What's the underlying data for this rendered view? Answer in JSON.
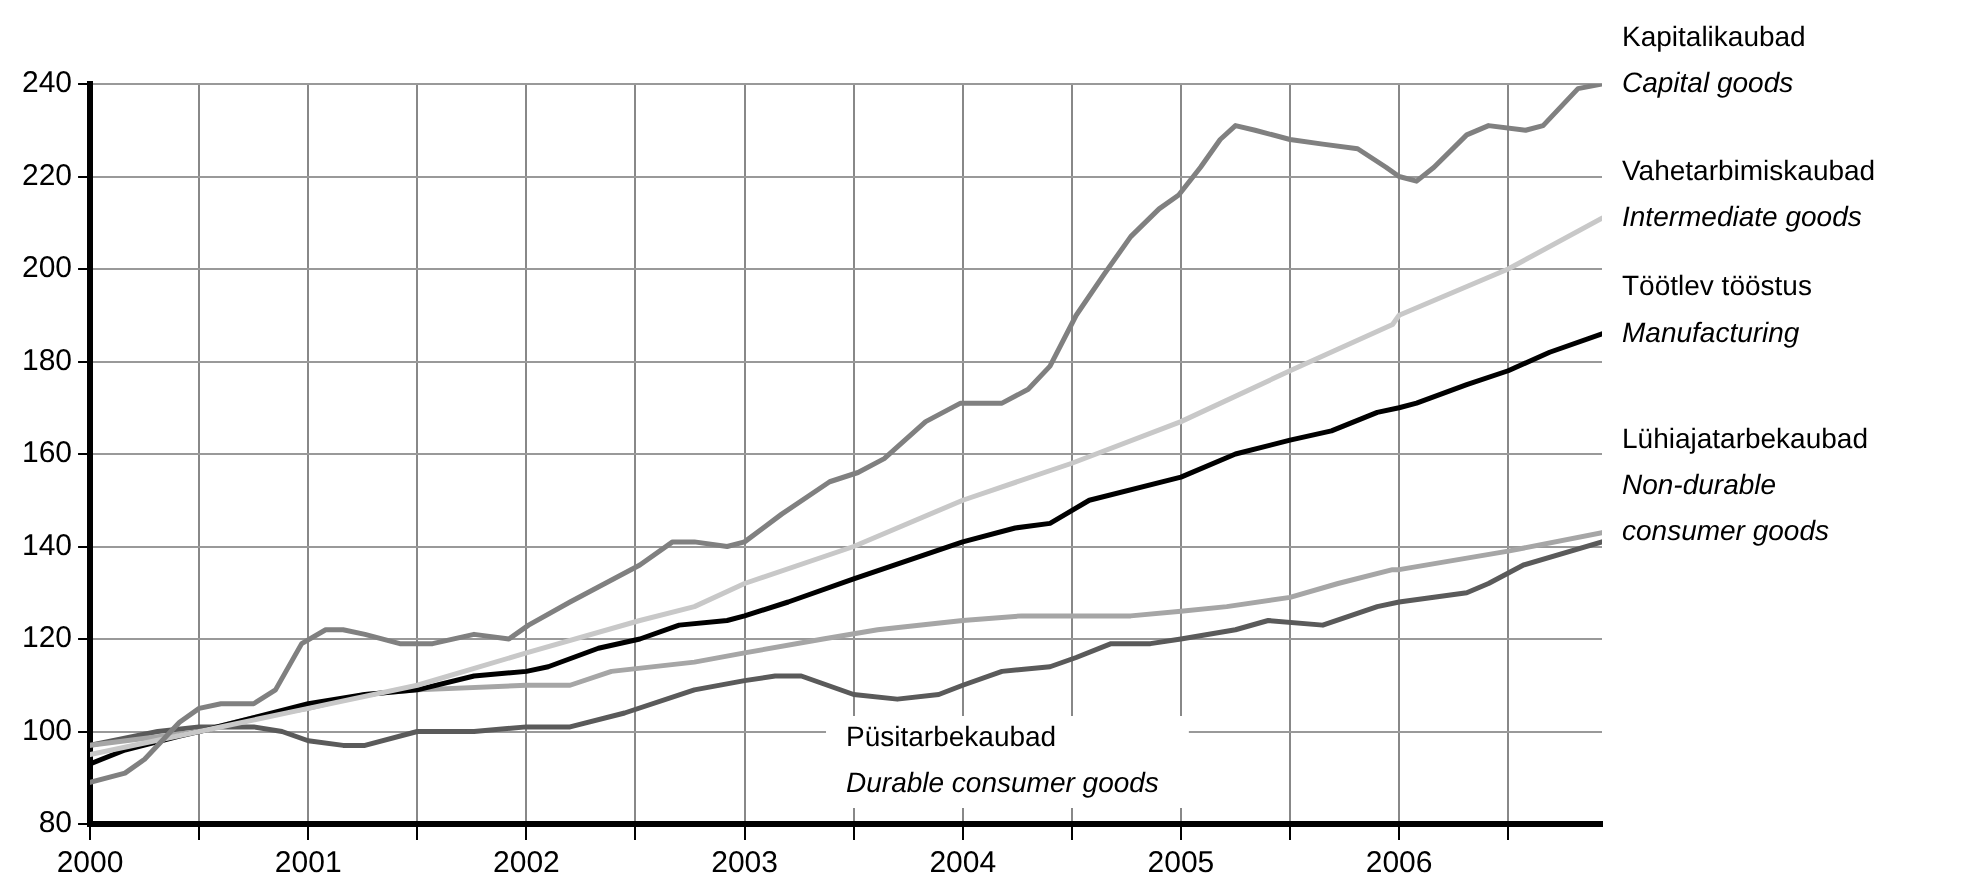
{
  "chart_data": {
    "type": "line",
    "xlim": [
      2000,
      2006.93
    ],
    "ylim": [
      80,
      240
    ],
    "xticks": [
      2000,
      {
        "value": 2000.5,
        "label": null
      },
      2001,
      {
        "value": 2001.5,
        "label": null
      },
      2002,
      {
        "value": 2002.5,
        "label": null
      },
      2003,
      {
        "value": 2003.5,
        "label": null
      },
      2004,
      {
        "value": 2004.5,
        "label": null
      },
      2005,
      {
        "value": 2005.5,
        "label": null
      },
      2006,
      {
        "value": 2006.5,
        "label": null
      }
    ],
    "yticks": [
      80,
      100,
      120,
      140,
      160,
      180,
      200,
      220,
      240
    ],
    "grid": true,
    "legend": false,
    "marker": "none",
    "line_style": "solid",
    "series": [
      {
        "name": "Kapitalikaubad\nCapital goods",
        "color": "#808080",
        "x": [
          2000,
          2000.16,
          2000.25,
          2000.41,
          2000.5,
          2000.6,
          2000.75,
          2000.85,
          2000.97,
          2001.08,
          2001.16,
          2001.26,
          2001.42,
          2001.57,
          2001.76,
          2001.92,
          2002.01,
          2002.2,
          2002.36,
          2002.52,
          2002.67,
          2002.77,
          2002.92,
          2003,
          2003.17,
          2003.39,
          2003.52,
          2003.64,
          2003.83,
          2003.99,
          2004.08,
          2004.18,
          2004.3,
          2004.4,
          2004.52,
          2004.65,
          2004.77,
          2004.9,
          2004.99,
          2005.09,
          2005.18,
          2005.25,
          2005.34,
          2005.5,
          2005.65,
          2005.81,
          2005.94,
          2006,
          2006.08,
          2006.16,
          2006.31,
          2006.41,
          2006.58,
          2006.66,
          2006.82,
          2006.93
        ],
        "values": [
          89,
          91,
          94,
          102,
          105,
          106,
          106,
          109,
          119,
          122,
          122,
          121,
          119,
          119,
          121,
          120,
          123,
          128,
          132,
          136,
          141,
          141,
          140,
          141,
          147,
          154,
          156,
          159,
          167,
          171,
          171,
          171,
          174,
          179,
          190,
          199,
          207,
          213,
          216,
          222,
          228,
          231,
          230,
          228,
          227,
          226,
          222,
          220,
          219,
          222,
          229,
          231,
          230,
          231,
          239,
          240
        ]
      },
      {
        "name": "Vahetarbimiskaubad\nIntermediate goods",
        "color": "#c8c8c8",
        "x": [
          2000,
          2000.5,
          2001,
          2001.5,
          2002,
          2002.52,
          2002.77,
          2003,
          2003.5,
          2004,
          2004.5,
          2005,
          2005.5,
          2005.97,
          2006,
          2006.5,
          2006.93
        ],
        "values": [
          95,
          100,
          105,
          110,
          117,
          124,
          127,
          132,
          140,
          150,
          158,
          167,
          178,
          188,
          190,
          200,
          211
        ]
      },
      {
        "name": "Töötlev tööstus\nManufacturing",
        "color": "#000000",
        "x": [
          2000,
          2000.16,
          2000.41,
          2000.5,
          2000.75,
          2001,
          2001.26,
          2001.5,
          2001.76,
          2002,
          2002.1,
          2002.33,
          2002.52,
          2002.7,
          2002.92,
          2003,
          2003.2,
          2003.5,
          2004,
          2004.24,
          2004.4,
          2004.58,
          2005,
          2005.25,
          2005.5,
          2005.69,
          2005.9,
          2006,
          2006.08,
          2006.31,
          2006.5,
          2006.69,
          2006.93
        ],
        "values": [
          93,
          96,
          99,
          100,
          103,
          106,
          108,
          109,
          112,
          113,
          114,
          118,
          120,
          123,
          124,
          125,
          128,
          133,
          141,
          144,
          145,
          150,
          155,
          160,
          163,
          165,
          169,
          170,
          171,
          175,
          178,
          182,
          186
        ]
      },
      {
        "name": "Lühiajatarbekaubad\nNon-durable consumer goods",
        "color": "#a6a6a6",
        "x": [
          2000,
          2000.5,
          2000.75,
          2001,
          2001.26,
          2001.5,
          2002,
          2002.2,
          2002.39,
          2002.77,
          2003,
          2003.36,
          2003.61,
          2004,
          2004.27,
          2004.77,
          2005,
          2005.21,
          2005.5,
          2005.72,
          2005.97,
          2006,
          2006.5,
          2006.93
        ],
        "values": [
          97,
          100,
          103,
          105,
          108,
          109,
          110,
          110,
          113,
          115,
          117,
          120,
          122,
          124,
          125,
          125,
          126,
          127,
          129,
          132,
          135,
          135,
          139,
          143
        ]
      },
      {
        "name": "Püsitarbekaubad\nDurable consumer goods",
        "color": "#5a5a5a",
        "x": [
          2000,
          2000.31,
          2000.5,
          2000.75,
          2000.88,
          2001,
          2001.16,
          2001.26,
          2001.5,
          2001.76,
          2002,
          2002.2,
          2002.45,
          2002.77,
          2003,
          2003.14,
          2003.26,
          2003.5,
          2003.7,
          2003.89,
          2004,
          2004.18,
          2004.4,
          2004.52,
          2004.68,
          2004.86,
          2005,
          2005.25,
          2005.4,
          2005.65,
          2005.9,
          2006,
          2006.31,
          2006.41,
          2006.57,
          2006.93
        ],
        "values": [
          97,
          100,
          101,
          101,
          100,
          98,
          97,
          97,
          100,
          100,
          101,
          101,
          104,
          109,
          111,
          112,
          112,
          108,
          107,
          108,
          110,
          113,
          114,
          116,
          119,
          119,
          120,
          122,
          124,
          123,
          127,
          128,
          130,
          132,
          136,
          141
        ]
      }
    ]
  }
}
